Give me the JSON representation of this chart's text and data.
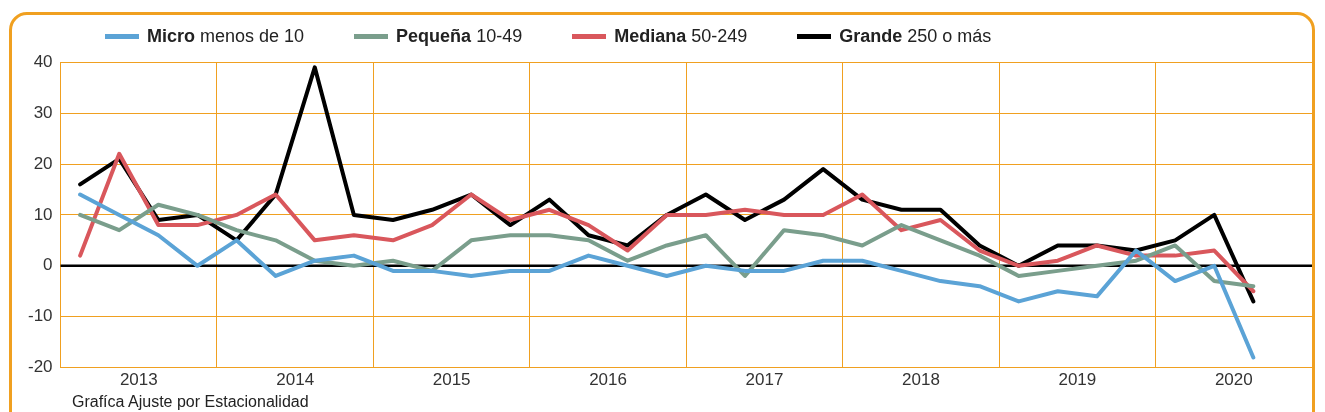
{
  "chart_data": {
    "type": "line",
    "x": [
      2013.125,
      2013.375,
      2013.625,
      2013.875,
      2014.125,
      2014.375,
      2014.625,
      2014.875,
      2015.125,
      2015.375,
      2015.625,
      2015.875,
      2016.125,
      2016.375,
      2016.625,
      2016.875,
      2017.125,
      2017.375,
      2017.625,
      2017.875,
      2018.125,
      2018.375,
      2018.625,
      2018.875,
      2019.125,
      2019.375,
      2019.625,
      2019.875,
      2020.125,
      2020.375,
      2020.625
    ],
    "series": [
      {
        "name": "Micro menos de 10",
        "color": "#5ba3d6",
        "values": [
          14,
          10,
          6,
          0,
          5,
          -2,
          1,
          2,
          -1,
          -1,
          -2,
          -1,
          -1,
          2,
          0,
          -2,
          0,
          -1,
          -1,
          1,
          1,
          -1,
          -3,
          -4,
          -7,
          -5,
          -6,
          3,
          -3,
          0,
          -18
        ]
      },
      {
        "name": "Pequeña 10-49",
        "color": "#7a9e8c",
        "values": [
          10,
          7,
          12,
          10,
          7,
          5,
          1,
          0,
          1,
          -1,
          5,
          6,
          6,
          5,
          1,
          4,
          6,
          -2,
          7,
          6,
          4,
          8,
          5,
          2,
          -2,
          -1,
          0,
          1,
          4,
          -3,
          -4
        ]
      },
      {
        "name": "Mediana 50-249",
        "color": "#d9575c",
        "values": [
          2,
          22,
          8,
          8,
          10,
          14,
          5,
          6,
          5,
          8,
          14,
          9,
          11,
          8,
          3,
          10,
          10,
          11,
          10,
          10,
          14,
          7,
          9,
          3,
          0,
          1,
          4,
          2,
          2,
          3,
          -5
        ]
      },
      {
        "name": "Grande 250 o más",
        "color": "#000000",
        "values": [
          16,
          21,
          9,
          10,
          5,
          14,
          39,
          10,
          9,
          11,
          14,
          8,
          13,
          6,
          4,
          10,
          14,
          9,
          13,
          19,
          13,
          11,
          11,
          4,
          0,
          4,
          4,
          3,
          5,
          10,
          -7
        ]
      }
    ],
    "xlim": [
      2013,
      2021
    ],
    "xticks": [
      {
        "value": 2013,
        "label": null
      },
      {
        "value": 2013.5,
        "label": "2013"
      },
      {
        "value": 2014,
        "label": null
      },
      {
        "value": 2014.5,
        "label": "2014"
      },
      {
        "value": 2015,
        "label": null
      },
      {
        "value": 2015.5,
        "label": "2015"
      },
      {
        "value": 2016,
        "label": null
      },
      {
        "value": 2016.5,
        "label": "2016"
      },
      {
        "value": 2017,
        "label": null
      },
      {
        "value": 2017.5,
        "label": "2017"
      },
      {
        "value": 2018,
        "label": null
      },
      {
        "value": 2018.5,
        "label": "2018"
      },
      {
        "value": 2019,
        "label": null
      },
      {
        "value": 2019.5,
        "label": "2019"
      },
      {
        "value": 2020,
        "label": null
      },
      {
        "value": 2020.5,
        "label": "2020"
      },
      {
        "value": 2021,
        "label": null
      }
    ],
    "ylim": [
      -20,
      40
    ],
    "yticks": [
      -20,
      -10,
      0,
      10,
      20,
      30,
      40
    ],
    "grid": true,
    "legend": "top",
    "marker": "none",
    "line_style": "solid",
    "ref_lines": [
      {
        "axis": "y",
        "value": 0,
        "color": "#000000"
      }
    ],
    "annotations": [
      "Grafíca Ajuste por Estacionalidad"
    ]
  }
}
